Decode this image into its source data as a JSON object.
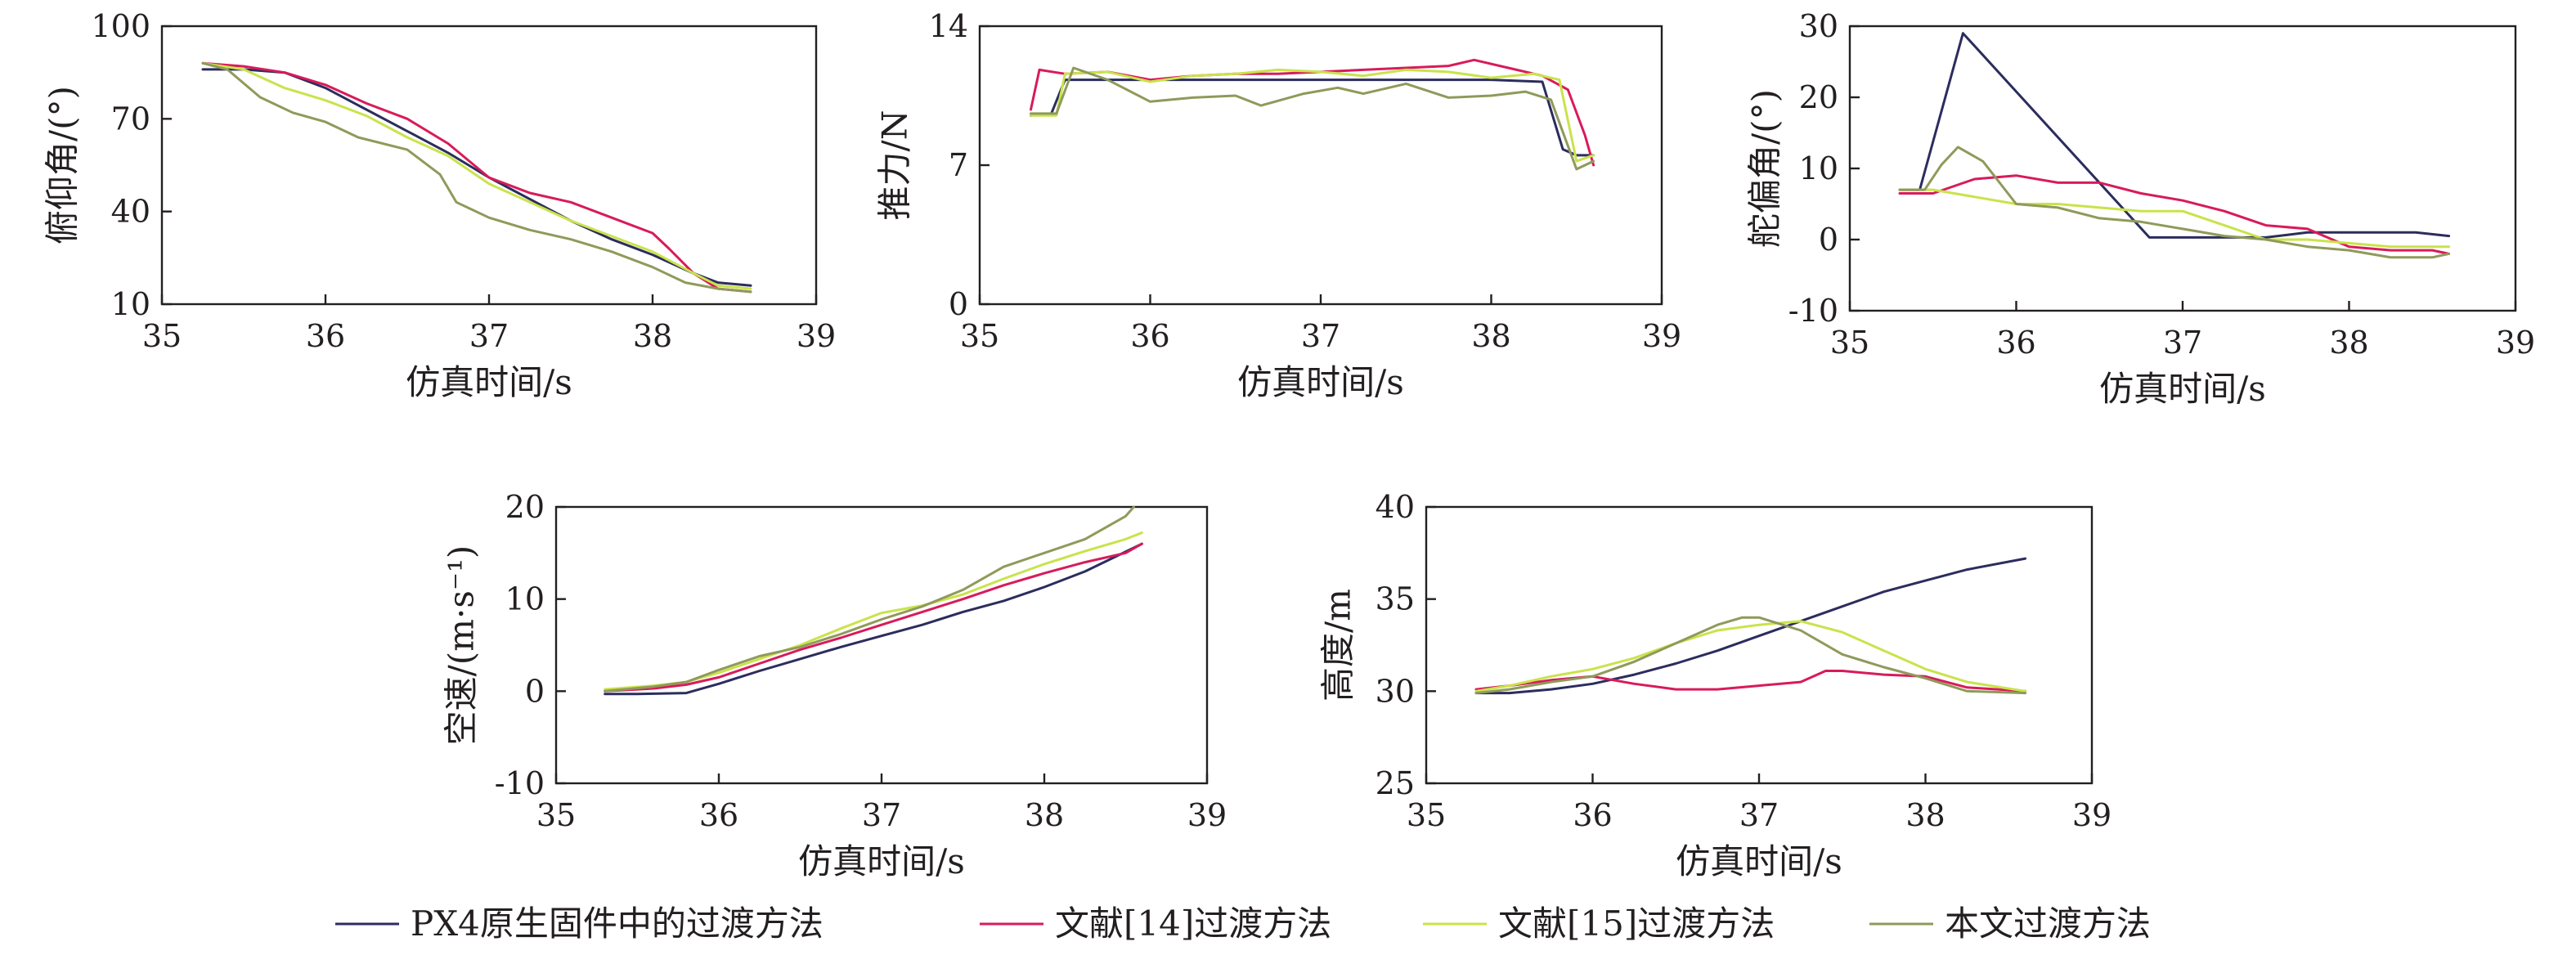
{
  "legend": [
    {
      "name": "PX4原生固件中的过渡方法",
      "color": "#2b2d5e"
    },
    {
      "name": "文献[14]过渡方法",
      "color": "#d81b5a"
    },
    {
      "name": "文献[15]过渡方法",
      "color": "#c9e34b"
    },
    {
      "name": "本文过渡方法",
      "color": "#8f9a5a"
    }
  ],
  "chart_data": [
    {
      "type": "line",
      "xlabel": "仿真时间/s",
      "ylabel": "俯仰角/(°)",
      "xlim": [
        35,
        39
      ],
      "ylim": [
        10,
        100
      ],
      "xticks": [
        35,
        36,
        37,
        38,
        39
      ],
      "yticks": [
        10,
        40,
        70,
        100
      ],
      "series": [
        {
          "name": "PX4原生固件中的过渡方法",
          "color": "#2b2d5e",
          "x": [
            35.25,
            35.5,
            35.75,
            36.0,
            36.25,
            36.5,
            36.75,
            37.0,
            37.25,
            37.5,
            37.75,
            38.0,
            38.25,
            38.4,
            38.6
          ],
          "y": [
            86,
            86,
            85,
            80,
            73,
            66,
            59,
            51,
            44,
            37,
            31,
            26,
            20,
            17,
            16
          ]
        },
        {
          "name": "文献[14]过渡方法",
          "color": "#d81b5a",
          "x": [
            35.25,
            35.5,
            35.75,
            36.0,
            36.25,
            36.5,
            36.75,
            37.0,
            37.25,
            37.5,
            37.75,
            38.0,
            38.1,
            38.25,
            38.4,
            38.6
          ],
          "y": [
            88,
            87,
            85,
            81,
            75,
            70,
            62,
            51,
            46,
            43,
            38,
            33,
            28,
            20,
            15,
            14
          ]
        },
        {
          "name": "文献[15]过渡方法",
          "color": "#c9e34b",
          "x": [
            35.25,
            35.5,
            35.75,
            36.0,
            36.25,
            36.5,
            36.75,
            37.0,
            37.25,
            37.5,
            37.75,
            38.0,
            38.25,
            38.4,
            38.6
          ],
          "y": [
            88,
            86,
            80,
            76,
            71,
            64,
            58,
            49,
            43,
            37,
            32,
            27,
            20,
            16,
            15
          ]
        },
        {
          "name": "本文过渡方法",
          "color": "#8f9a5a",
          "x": [
            35.25,
            35.4,
            35.6,
            35.8,
            36.0,
            36.2,
            36.5,
            36.7,
            36.8,
            37.0,
            37.25,
            37.5,
            37.75,
            38.0,
            38.2,
            38.4,
            38.6
          ],
          "y": [
            88,
            86,
            77,
            72,
            69,
            64,
            60,
            52,
            43,
            38,
            34,
            31,
            27,
            22,
            17,
            15,
            14
          ]
        }
      ]
    },
    {
      "type": "line",
      "xlabel": "仿真时间/s",
      "ylabel": "推力/N",
      "xlim": [
        35,
        39
      ],
      "ylim": [
        0,
        14
      ],
      "xticks": [
        35,
        36,
        37,
        38,
        39
      ],
      "yticks": [
        0,
        7,
        14
      ],
      "series": [
        {
          "name": "PX4原生固件中的过渡方法",
          "color": "#2b2d5e",
          "x": [
            35.3,
            35.42,
            35.5,
            36.0,
            36.5,
            37.0,
            37.5,
            38.0,
            38.3,
            38.42,
            38.5,
            38.6
          ],
          "y": [
            9.5,
            9.6,
            11.3,
            11.3,
            11.3,
            11.3,
            11.3,
            11.3,
            11.2,
            7.8,
            7.5,
            7.5
          ]
        },
        {
          "name": "文献[14]过渡方法",
          "color": "#d81b5a",
          "x": [
            35.3,
            35.35,
            35.5,
            35.75,
            36.0,
            36.25,
            36.5,
            36.75,
            37.0,
            37.25,
            37.5,
            37.75,
            37.9,
            38.1,
            38.3,
            38.45,
            38.55,
            38.6
          ],
          "y": [
            9.8,
            11.8,
            11.6,
            11.7,
            11.3,
            11.5,
            11.6,
            11.6,
            11.7,
            11.8,
            11.9,
            12.0,
            12.3,
            11.9,
            11.5,
            10.8,
            8.5,
            7.0
          ]
        },
        {
          "name": "文献[15]过渡方法",
          "color": "#c9e34b",
          "x": [
            35.3,
            35.45,
            35.5,
            35.75,
            36.0,
            36.25,
            36.5,
            36.75,
            37.0,
            37.25,
            37.5,
            37.75,
            38.0,
            38.25,
            38.4,
            38.5,
            38.6
          ],
          "y": [
            9.5,
            9.5,
            11.6,
            11.7,
            11.2,
            11.5,
            11.6,
            11.8,
            11.7,
            11.5,
            11.8,
            11.7,
            11.4,
            11.6,
            11.3,
            7.2,
            7.5
          ]
        },
        {
          "name": "本文过渡方法",
          "color": "#8f9a5a",
          "x": [
            35.3,
            35.45,
            35.55,
            35.75,
            36.0,
            36.25,
            36.5,
            36.65,
            36.9,
            37.1,
            37.25,
            37.5,
            37.75,
            38.0,
            38.2,
            38.35,
            38.5,
            38.6
          ],
          "y": [
            9.6,
            9.6,
            11.9,
            11.3,
            10.2,
            10.4,
            10.5,
            10.0,
            10.6,
            10.9,
            10.6,
            11.1,
            10.4,
            10.5,
            10.7,
            10.3,
            6.8,
            7.2
          ]
        }
      ]
    },
    {
      "type": "line",
      "xlabel": "仿真时间/s",
      "ylabel": "舵偏角/(°)",
      "xlim": [
        35,
        39
      ],
      "ylim": [
        -10,
        30
      ],
      "xticks": [
        35,
        36,
        37,
        38,
        39
      ],
      "yticks": [
        -10,
        0,
        10,
        20,
        30
      ],
      "series": [
        {
          "name": "PX4原生固件中的过渡方法",
          "color": "#2b2d5e",
          "x": [
            35.3,
            35.42,
            35.68,
            36.8,
            37.0,
            37.5,
            37.75,
            38.0,
            38.4,
            38.6
          ],
          "y": [
            7,
            7,
            29,
            0.3,
            0.3,
            0.3,
            1,
            1,
            1,
            0.5
          ]
        },
        {
          "name": "文献[14]过渡方法",
          "color": "#d81b5a",
          "x": [
            35.3,
            35.5,
            35.75,
            36.0,
            36.25,
            36.5,
            36.75,
            37.0,
            37.25,
            37.5,
            37.75,
            38.0,
            38.25,
            38.5,
            38.6
          ],
          "y": [
            6.5,
            6.5,
            8.5,
            9,
            8,
            8,
            6.5,
            5.5,
            4,
            2,
            1.5,
            -1,
            -1.5,
            -1.5,
            -2
          ]
        },
        {
          "name": "文献[15]过渡方法",
          "color": "#c9e34b",
          "x": [
            35.3,
            35.5,
            35.75,
            36.0,
            36.25,
            36.5,
            36.75,
            37.0,
            37.25,
            37.5,
            37.75,
            38.0,
            38.25,
            38.5,
            38.6
          ],
          "y": [
            7,
            7,
            6,
            5,
            5,
            4.5,
            4,
            4,
            2,
            0,
            0,
            -0.5,
            -1,
            -1,
            -1
          ]
        },
        {
          "name": "本文过渡方法",
          "color": "#8f9a5a",
          "x": [
            35.3,
            35.45,
            35.55,
            35.65,
            35.8,
            36.0,
            36.25,
            36.5,
            36.75,
            37.0,
            37.25,
            37.5,
            37.75,
            38.0,
            38.25,
            38.5,
            38.6
          ],
          "y": [
            7,
            7,
            10.5,
            13,
            11,
            5,
            4.5,
            3,
            2.5,
            1.5,
            0.5,
            0,
            -1,
            -1.5,
            -2.5,
            -2.5,
            -2
          ]
        }
      ]
    },
    {
      "type": "line",
      "xlabel": "仿真时间/s",
      "ylabel": "空速/(m·s⁻¹)",
      "xlim": [
        35,
        39
      ],
      "ylim": [
        -10,
        20
      ],
      "xticks": [
        35,
        36,
        37,
        38,
        39
      ],
      "yticks": [
        -10,
        0,
        10,
        20
      ],
      "series": [
        {
          "name": "PX4原生固件中的过渡方法",
          "color": "#2b2d5e",
          "x": [
            35.3,
            35.5,
            35.8,
            36.0,
            36.25,
            36.5,
            36.75,
            37.0,
            37.25,
            37.5,
            37.75,
            38.0,
            38.25,
            38.6
          ],
          "y": [
            -0.3,
            -0.3,
            -0.2,
            0.8,
            2.2,
            3.5,
            4.8,
            6,
            7.2,
            8.6,
            9.8,
            11.3,
            13,
            16
          ]
        },
        {
          "name": "文献[14]过渡方法",
          "color": "#d81b5a",
          "x": [
            35.3,
            35.6,
            35.8,
            36.0,
            36.25,
            36.5,
            36.75,
            37.0,
            37.25,
            37.5,
            37.75,
            38.0,
            38.25,
            38.5,
            38.6
          ],
          "y": [
            0,
            0.3,
            0.7,
            1.5,
            3,
            4.5,
            5.8,
            7.2,
            8.6,
            10,
            11.5,
            12.8,
            14,
            15,
            16
          ]
        },
        {
          "name": "文献[15]过渡方法",
          "color": "#c9e34b",
          "x": [
            35.3,
            35.6,
            35.8,
            36.0,
            36.25,
            36.5,
            36.75,
            37.0,
            37.25,
            37.5,
            37.75,
            38.0,
            38.25,
            38.5,
            38.6
          ],
          "y": [
            0.2,
            0.6,
            1,
            2,
            3.5,
            5,
            6.8,
            8.5,
            9.3,
            10.5,
            12.2,
            13.8,
            15.2,
            16.5,
            17.2
          ]
        },
        {
          "name": "本文过渡方法",
          "color": "#8f9a5a",
          "x": [
            35.3,
            35.6,
            35.8,
            36.0,
            36.25,
            36.5,
            36.75,
            37.0,
            37.25,
            37.5,
            37.75,
            38.0,
            38.25,
            38.5,
            38.55
          ],
          "y": [
            0,
            0.5,
            1,
            2.3,
            3.8,
            4.8,
            6.2,
            7.8,
            9.2,
            11,
            13.5,
            15,
            16.5,
            19,
            20
          ]
        }
      ]
    },
    {
      "type": "line",
      "xlabel": "仿真时间/s",
      "ylabel": "高度/m",
      "xlim": [
        35,
        39
      ],
      "ylim": [
        25,
        40
      ],
      "xticks": [
        35,
        36,
        37,
        38,
        39
      ],
      "yticks": [
        25,
        30,
        35,
        40
      ],
      "series": [
        {
          "name": "PX4原生固件中的过渡方法",
          "color": "#2b2d5e",
          "x": [
            35.3,
            35.5,
            35.75,
            36.0,
            36.25,
            36.5,
            36.75,
            37.0,
            37.25,
            37.5,
            37.75,
            38.0,
            38.25,
            38.6
          ],
          "y": [
            29.9,
            29.9,
            30.1,
            30.4,
            30.9,
            31.5,
            32.2,
            33,
            33.8,
            34.6,
            35.4,
            36,
            36.6,
            37.2
          ]
        },
        {
          "name": "文献[14]过渡方法",
          "color": "#d81b5a",
          "x": [
            35.3,
            35.5,
            35.75,
            36.0,
            36.25,
            36.5,
            36.75,
            37.0,
            37.25,
            37.4,
            37.5,
            37.75,
            38.0,
            38.25,
            38.6
          ],
          "y": [
            30.1,
            30.3,
            30.6,
            30.8,
            30.4,
            30.1,
            30.1,
            30.3,
            30.5,
            31.1,
            31.1,
            30.9,
            30.8,
            30.2,
            30
          ]
        },
        {
          "name": "文献[15]过渡方法",
          "color": "#c9e34b",
          "x": [
            35.3,
            35.5,
            35.75,
            36.0,
            36.25,
            36.5,
            36.75,
            37.0,
            37.25,
            37.5,
            37.75,
            38.0,
            38.25,
            38.6
          ],
          "y": [
            30,
            30.3,
            30.8,
            31.2,
            31.8,
            32.6,
            33.3,
            33.6,
            33.8,
            33.2,
            32.2,
            31.2,
            30.5,
            30
          ]
        },
        {
          "name": "本文过渡方法",
          "color": "#8f9a5a",
          "x": [
            35.3,
            35.5,
            35.75,
            36.0,
            36.25,
            36.5,
            36.75,
            36.9,
            37.0,
            37.25,
            37.5,
            37.75,
            38.0,
            38.25,
            38.6
          ],
          "y": [
            29.9,
            30.1,
            30.5,
            30.8,
            31.6,
            32.6,
            33.6,
            34,
            34,
            33.3,
            32,
            31.3,
            30.7,
            30,
            29.9
          ]
        }
      ]
    }
  ]
}
